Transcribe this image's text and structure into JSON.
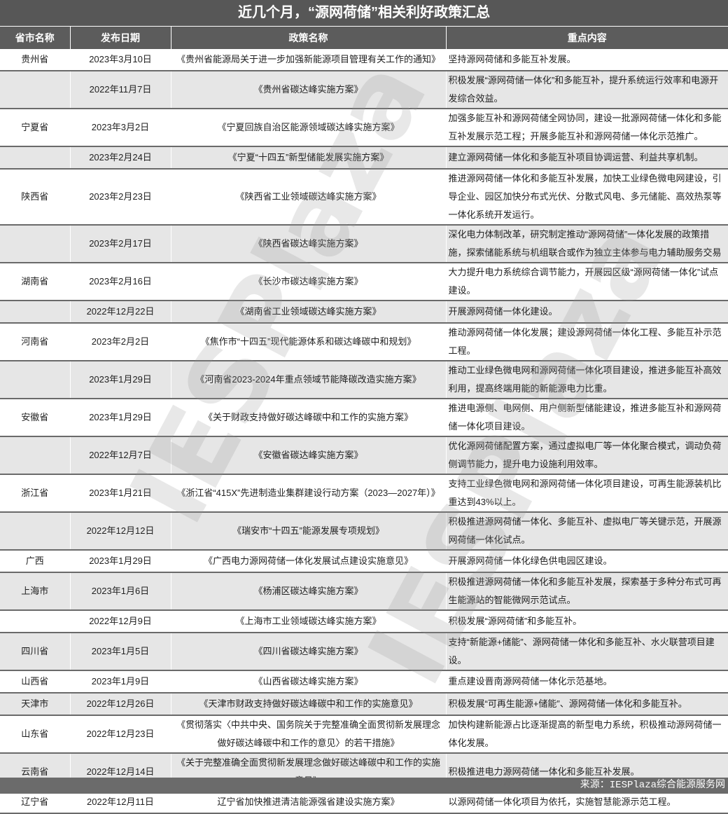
{
  "title": "近几个月，“源网荷储”相关利好政策汇总",
  "headers": [
    "省市名称",
    "发布日期",
    "政策名称",
    "重点内容"
  ],
  "rows": [
    [
      "贵州省",
      "2023年3月10日",
      "《贵州省能源局关于进一步加强新能源项目管理有关工作的通知》",
      "坚持源网荷储和多能互补发展。"
    ],
    [
      "",
      "2022年11月7日",
      "《贵州省碳达峰实施方案》",
      "积极发展“源网荷储一体化”和多能互补，提升系统运行效率和电源开发综合效益。"
    ],
    [
      "宁夏省",
      "2023年3月2日",
      "《宁夏回族自治区能源领域碳达峰实施方案》",
      "加强多能互补和源网荷储全网协同，建设一批源网荷储一体化和多能互补发展示范工程；开展多能互补和源网荷储一体化示范推广。"
    ],
    [
      "",
      "2023年2月24日",
      "《宁夏“十四五”新型储能发展实施方案》",
      "建立源网荷储一体化和多能互补项目协调运营、利益共享机制。"
    ],
    [
      "陕西省",
      "2023年2月23日",
      "《陕西省工业领域碳达峰实施方案》",
      "推进源网荷储一体化和多能互补发展，加快工业绿色微电网建设，引导企业、园区加快分布式光伏、分散式风电、多元储能、高效热泵等一体化系统开发运行。"
    ],
    [
      "",
      "2023年2月17日",
      "《陕西省碳达峰实施方案》",
      "深化电力体制改革，研究制定推动“源网荷储”一体化发展的政策措施，探索储能系统与机组联合或作为独立主体参与电力辅助服务交易"
    ],
    [
      "湖南省",
      "2023年2月16日",
      "《长沙市碳达峰实施方案》",
      "大力提升电力系统综合调节能力，开展园区级“源网荷储一体化”试点建设。"
    ],
    [
      "",
      "2022年12月22日",
      "《湖南省工业领域碳达峰实施方案》",
      "开展源网荷储一体化建设。"
    ],
    [
      "河南省",
      "2023年2月2日",
      "《焦作市“十四五”现代能源体系和碳达峰碳中和规划》",
      "推动源网荷储一体化发展；建设源网荷储一体化工程、多能互补示范工程。"
    ],
    [
      "",
      "2023年1月29日",
      "《河南省2023-2024年重点领域节能降碳改造实施方案》",
      "推动工业绿色微电网和源网荷储一体化项目建设，推进多能互补高效利用，提高终端用能的新能源电力比重。"
    ],
    [
      "安徽省",
      "2023年1月29日",
      "《关于财政支持做好碳达峰碳中和工作的实施方案》",
      "推进电源侧、电网侧、用户侧新型储能建设，推进多能互补和源网荷储一体化项目建设。"
    ],
    [
      "",
      "2022年12月7日",
      "《安徽省碳达峰实施方案》",
      "优化源网荷储配置方案，通过虚拟电厂等一体化聚合模式，调动负荷侧调节能力，提升电力设施利用效率。"
    ],
    [
      "浙江省",
      "2023年1月21日",
      "《浙江省“415X”先进制造业集群建设行动方案（2023—2027年）》",
      "支持工业绿色微电网和源网荷储一体化项目建设，可再生能源装机比重达到43%以上。"
    ],
    [
      "",
      "2022年12月12日",
      "《瑞安市“十四五”能源发展专项规划》",
      "积极推进源网荷储一体化、多能互补、虚拟电厂等关键示范，开展源网荷储一体化试点。"
    ],
    [
      "广西",
      "2023年1月29日",
      "《广西电力源网荷储一体化发展试点建设实施意见》",
      "开展源网荷储一体化绿色供电园区建设。"
    ],
    [
      "上海市",
      "2023年1月6日",
      "《杨浦区碳达峰实施方案》",
      "积极推进源网荷储一体化和多能互补发展，探索基于多种分布式可再生能源站的智能微网示范试点。"
    ],
    [
      "",
      "2022年12月9日",
      "《上海市工业领域碳达峰实施方案》",
      "积极发展“源网荷储”和多能互补。"
    ],
    [
      "四川省",
      "2023年1月5日",
      "《四川省碳达峰实施方案》",
      "支持“新能源+储能”、源网荷储一体化和多能互补、水火联营项目建设。"
    ],
    [
      "山西省",
      "2023年1月9日",
      "《山西省碳达峰实施方案》",
      "重点建设晋南源网荷储一体化示范基地。"
    ],
    [
      "天津市",
      "2022年12月26日",
      "《天津市财政支持做好碳达峰碳中和工作的实施意见》",
      "积极发展“可再生能源+储能”、源网荷储一体化和多能互补。"
    ],
    [
      "山东省",
      "2022年12月23日",
      "《贯彻落实〈中共中央、国务院关于完整准确全面贯彻新发展理念做好碳达峰碳中和工作的意见〉的若干措施》",
      "加快构建新能源占比逐渐提高的新型电力系统，积极推动源网荷储一体化发展。"
    ],
    [
      "云南省",
      "2022年12月14日",
      "《关于完整准确全面贯彻新发展理念做好碳达峰碳中和工作的实施意见》",
      "积极推进电力源网荷储一体化和多能互补发展。"
    ],
    [
      "辽宁省",
      "2022年12月11日",
      "辽宁省加快推进清洁能源强省建设实施方案》",
      "以源网荷储一体化项目为依托，实施智慧能源示范工程。"
    ]
  ],
  "footer": "来源：IESPlaza综合能源服务网",
  "watermark": "IESPlaza",
  "colors": {
    "header_bg": "#5c5c5c",
    "alt_row_bg": "#e6e6e6",
    "footer_bg": "#6b6b6b"
  }
}
